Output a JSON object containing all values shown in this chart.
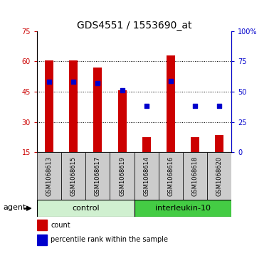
{
  "title": "GDS4551 / 1553690_at",
  "samples": [
    "GSM1068613",
    "GSM1068615",
    "GSM1068617",
    "GSM1068619",
    "GSM1068614",
    "GSM1068616",
    "GSM1068618",
    "GSM1068620"
  ],
  "count_values": [
    60.5,
    60.5,
    57.0,
    45.5,
    22.5,
    63.0,
    22.5,
    23.5
  ],
  "count_base": 15,
  "percentile_values": [
    58,
    58,
    57,
    51,
    38,
    59,
    38,
    38
  ],
  "ylim_left": [
    15,
    75
  ],
  "ylim_right": [
    0,
    100
  ],
  "yticks_left": [
    15,
    30,
    45,
    60,
    75
  ],
  "yticks_right": [
    0,
    25,
    50,
    75,
    100
  ],
  "bar_color": "#cc0000",
  "dot_color": "#0000cc",
  "bar_width": 0.35,
  "dot_size": 25,
  "control_color": "#d0f0d0",
  "interleukin_color": "#44cc44",
  "bg_color": "#cccccc",
  "plot_bg": "#ffffff",
  "title_fontsize": 10,
  "tick_fontsize": 7,
  "sample_fontsize": 6,
  "group_fontsize": 8,
  "legend_fontsize": 7
}
